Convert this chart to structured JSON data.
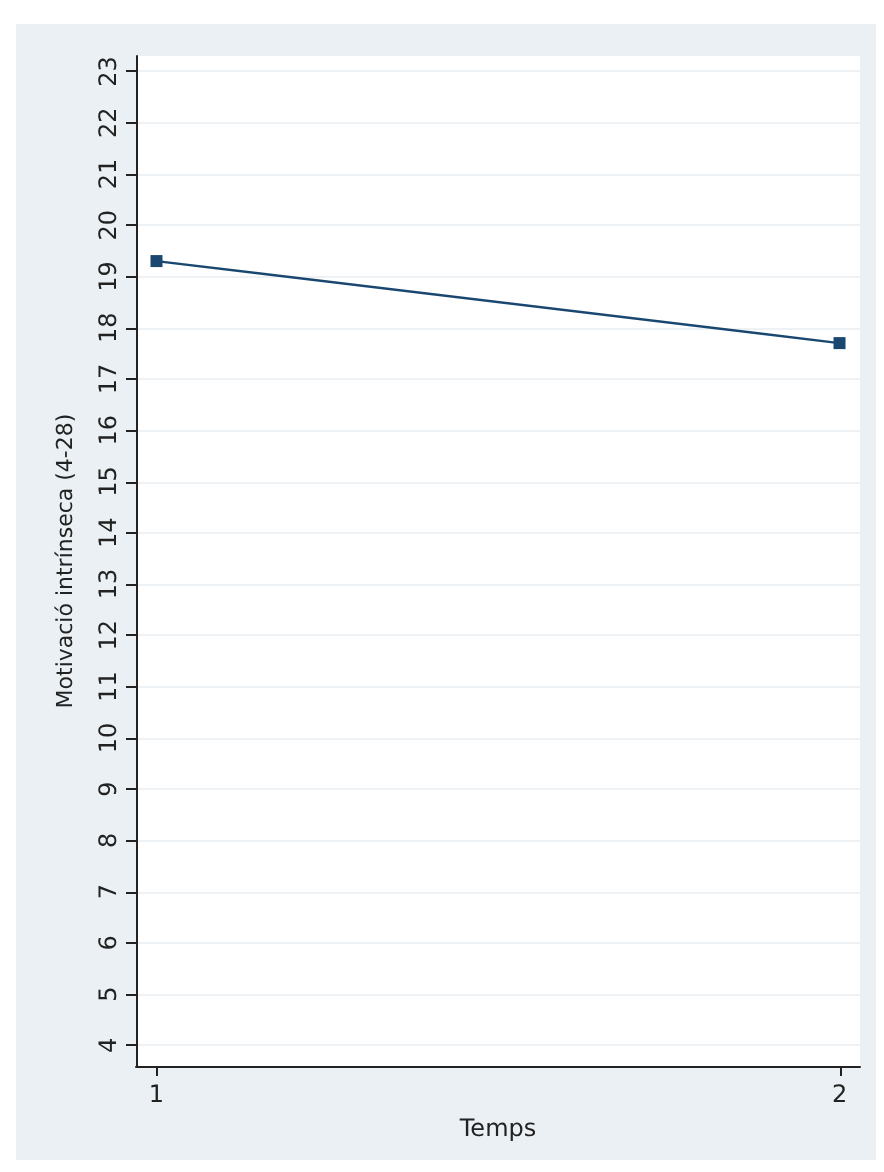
{
  "chart_data": {
    "type": "line",
    "xlabel": "Temps",
    "ylabel": "Motivació intrínseca (4-28)",
    "x": [
      1,
      2
    ],
    "series": [
      {
        "color": "#1a476f",
        "values": [
          19.3,
          17.7
        ]
      }
    ],
    "xlim": [
      0.97,
      2.03
    ],
    "xticks": [
      1,
      2
    ],
    "ylim": [
      3.6,
      23.3
    ],
    "yticks": [
      4,
      5,
      6,
      7,
      8,
      9,
      10,
      11,
      12,
      13,
      14,
      15,
      16,
      17,
      18,
      19,
      20,
      21,
      22,
      23
    ],
    "grid": "y",
    "marker": "square",
    "line_style": "solid"
  }
}
